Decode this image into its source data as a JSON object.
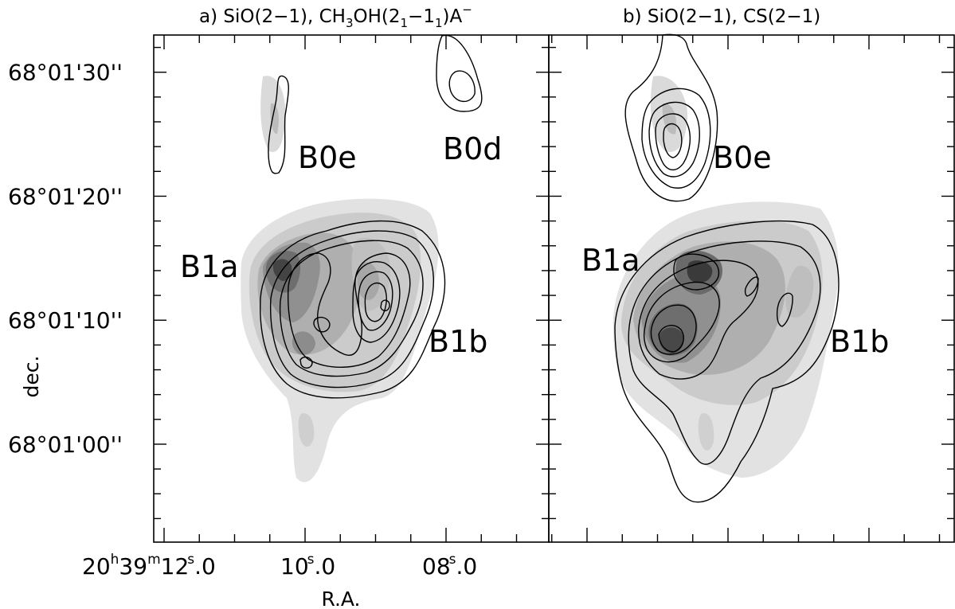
{
  "chart_data": [
    {
      "type": "heatmap",
      "panel_label": "a)",
      "title_parts": {
        "a": "a) SiO(2−1), CH",
        "b": "3",
        "c": "OH(2",
        "d": "1",
        "e": "−1",
        "f": "1",
        "g": ")A",
        "h": "−"
      },
      "image_tracer": "SiO(2−1)",
      "contour_tracer": "CH3OH(21−11)A−",
      "xlabel": "R.A.",
      "ylabel": "dec.",
      "x_ticks": [
        {
          "h": "20",
          "m": "39",
          "s": "12",
          "frac": ".0"
        },
        {
          "h": "",
          "m": "",
          "s": "10",
          "frac": ".0"
        },
        {
          "h": "",
          "m": "",
          "s": "08",
          "frac": ".0"
        }
      ],
      "y_ticks": [
        "68°01'30''",
        "68°01'20''",
        "68°01'10''",
        "68°01'00''"
      ],
      "y_tick_values_arcsec": [
        30,
        20,
        10,
        0
      ],
      "y_range_arcsec": [
        -7.9,
        33.0
      ],
      "sources": [
        {
          "label": "B0e"
        },
        {
          "label": "B0d"
        },
        {
          "label": "B1a"
        },
        {
          "label": "B1b"
        }
      ]
    },
    {
      "type": "heatmap",
      "panel_label": "b)",
      "title": "b) SiO(2−1), CS(2−1)",
      "image_tracer": "SiO(2−1)",
      "contour_tracer": "CS(2−1)",
      "sources": [
        {
          "label": "B0e"
        },
        {
          "label": "B1a"
        },
        {
          "label": "B1b"
        }
      ]
    }
  ],
  "colors": {
    "grey_levels": [
      "#e0e0e0",
      "#cacaca",
      "#b0b0b0",
      "#949494",
      "#787878",
      "#5a5a5a",
      "#3c3c3c"
    ],
    "contour": "#000000",
    "frame": "#000000"
  }
}
